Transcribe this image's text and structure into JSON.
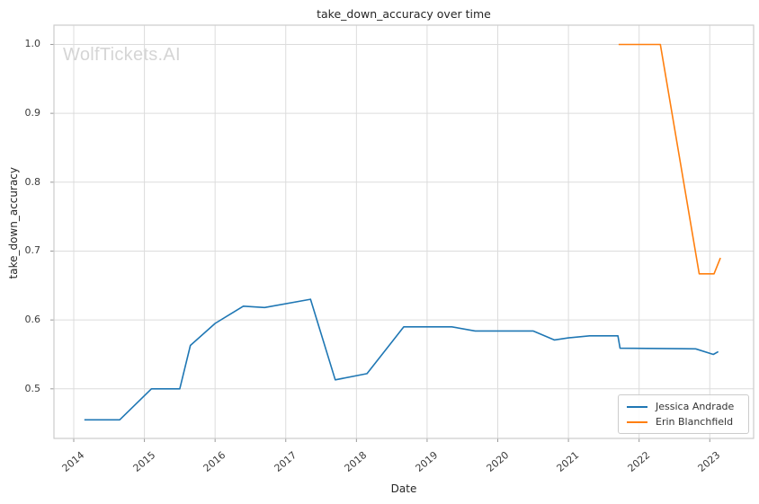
{
  "watermark": {
    "text": "WolfTickets.AI",
    "color": "#d5d5d5"
  },
  "chart_data": {
    "type": "line",
    "title": "take_down_accuracy over time",
    "xlabel": "Date",
    "ylabel": "take_down_accuracy",
    "x_ticks": [
      2014,
      2015,
      2016,
      2017,
      2018,
      2019,
      2020,
      2021,
      2022,
      2023
    ],
    "y_ticks": [
      0.5,
      0.6,
      0.7,
      0.8,
      0.9,
      1.0
    ],
    "xlim": [
      2013.72,
      2023.62
    ],
    "ylim": [
      0.428,
      1.028
    ],
    "grid": true,
    "legend_position": "lower right",
    "series": [
      {
        "name": "Jessica Andrade",
        "color": "#1f77b4",
        "points": [
          [
            2014.15,
            0.455
          ],
          [
            2014.65,
            0.455
          ],
          [
            2015.1,
            0.5
          ],
          [
            2015.5,
            0.5
          ],
          [
            2015.65,
            0.563
          ],
          [
            2016.0,
            0.595
          ],
          [
            2016.4,
            0.62
          ],
          [
            2016.7,
            0.618
          ],
          [
            2017.35,
            0.63
          ],
          [
            2017.7,
            0.513
          ],
          [
            2018.15,
            0.522
          ],
          [
            2018.67,
            0.59
          ],
          [
            2019.35,
            0.59
          ],
          [
            2019.68,
            0.584
          ],
          [
            2020.5,
            0.584
          ],
          [
            2020.8,
            0.571
          ],
          [
            2021.0,
            0.574
          ],
          [
            2021.3,
            0.577
          ],
          [
            2021.7,
            0.577
          ],
          [
            2021.73,
            0.559
          ],
          [
            2022.8,
            0.558
          ],
          [
            2023.05,
            0.55
          ],
          [
            2023.12,
            0.554
          ]
        ]
      },
      {
        "name": "Erin Blanchfield",
        "color": "#ff7f0e",
        "points": [
          [
            2021.71,
            1.0
          ],
          [
            2022.3,
            1.0
          ],
          [
            2022.85,
            0.667
          ],
          [
            2023.06,
            0.667
          ],
          [
            2023.15,
            0.69
          ]
        ]
      }
    ]
  },
  "style": {
    "grid_color": "#dcdcdc",
    "spine_color": "#cccccc",
    "tick_color": "#999999",
    "text_color": "#262626",
    "tick_label_color": "#3b3b3b"
  }
}
